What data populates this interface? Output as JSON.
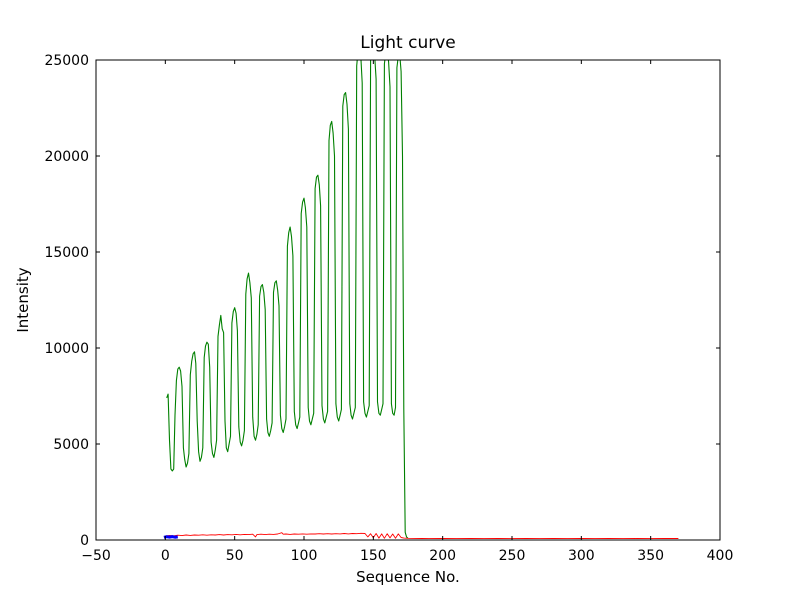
{
  "figure": {
    "background": "#ffffff"
  },
  "chart_data": {
    "type": "line",
    "title": "Light curve",
    "xlabel": "Sequence No.",
    "ylabel": "Intensity",
    "xlim": [
      -50,
      400
    ],
    "ylim": [
      0,
      25000
    ],
    "grid": false,
    "legend_position": "none",
    "axis_color": "#000000",
    "xticks": [
      -50,
      0,
      50,
      100,
      150,
      200,
      250,
      300,
      350,
      400
    ],
    "xtick_labels": [
      "−50",
      "0",
      "50",
      "100",
      "150",
      "200",
      "250",
      "300",
      "350",
      "400"
    ],
    "yticks": [
      0,
      5000,
      10000,
      15000,
      20000,
      25000
    ],
    "ytick_labels": [
      "0",
      "5000",
      "10000",
      "15000",
      "20000",
      "25000"
    ],
    "series": [
      {
        "name": "green-series",
        "color": "#008000",
        "linewidth": 1.1,
        "points": [
          [
            1,
            7400
          ],
          [
            2,
            7600
          ],
          [
            3,
            5200
          ],
          [
            4,
            3700
          ],
          [
            5,
            3600
          ],
          [
            6,
            3700
          ],
          [
            7,
            6500
          ],
          [
            8,
            8300
          ],
          [
            9,
            8900
          ],
          [
            10,
            9000
          ],
          [
            11,
            8800
          ],
          [
            12,
            8000
          ],
          [
            13,
            4800
          ],
          [
            14,
            4200
          ],
          [
            15,
            3800
          ],
          [
            16,
            4000
          ],
          [
            17,
            4500
          ],
          [
            18,
            8600
          ],
          [
            19,
            9300
          ],
          [
            20,
            9700
          ],
          [
            21,
            9800
          ],
          [
            22,
            9200
          ],
          [
            23,
            6200
          ],
          [
            24,
            4600
          ],
          [
            25,
            4100
          ],
          [
            26,
            4300
          ],
          [
            27,
            4800
          ],
          [
            28,
            9500
          ],
          [
            29,
            10100
          ],
          [
            30,
            10300
          ],
          [
            31,
            10200
          ],
          [
            32,
            9000
          ],
          [
            33,
            5100
          ],
          [
            34,
            4500
          ],
          [
            35,
            4300
          ],
          [
            36,
            4700
          ],
          [
            37,
            5200
          ],
          [
            38,
            10600
          ],
          [
            39,
            11200
          ],
          [
            40,
            11700
          ],
          [
            41,
            11000
          ],
          [
            42,
            10800
          ],
          [
            43,
            6200
          ],
          [
            44,
            4800
          ],
          [
            45,
            4600
          ],
          [
            46,
            5000
          ],
          [
            47,
            5400
          ],
          [
            48,
            11300
          ],
          [
            49,
            11900
          ],
          [
            50,
            12100
          ],
          [
            51,
            11800
          ],
          [
            52,
            10900
          ],
          [
            53,
            5900
          ],
          [
            54,
            5100
          ],
          [
            55,
            4900
          ],
          [
            56,
            5200
          ],
          [
            57,
            5700
          ],
          [
            58,
            12800
          ],
          [
            59,
            13600
          ],
          [
            60,
            13900
          ],
          [
            61,
            13400
          ],
          [
            62,
            12600
          ],
          [
            63,
            6400
          ],
          [
            64,
            5400
          ],
          [
            65,
            5200
          ],
          [
            66,
            5500
          ],
          [
            67,
            6000
          ],
          [
            68,
            12700
          ],
          [
            69,
            13200
          ],
          [
            70,
            13300
          ],
          [
            71,
            12900
          ],
          [
            72,
            12000
          ],
          [
            73,
            6300
          ],
          [
            74,
            5600
          ],
          [
            75,
            5400
          ],
          [
            76,
            5700
          ],
          [
            77,
            6100
          ],
          [
            78,
            12900
          ],
          [
            79,
            13400
          ],
          [
            80,
            13500
          ],
          [
            81,
            13000
          ],
          [
            82,
            12200
          ],
          [
            83,
            6500
          ],
          [
            84,
            5800
          ],
          [
            85,
            5600
          ],
          [
            86,
            5900
          ],
          [
            87,
            6300
          ],
          [
            88,
            15300
          ],
          [
            89,
            16000
          ],
          [
            90,
            16300
          ],
          [
            91,
            15800
          ],
          [
            92,
            14800
          ],
          [
            93,
            6700
          ],
          [
            94,
            6000
          ],
          [
            95,
            5800
          ],
          [
            96,
            6100
          ],
          [
            97,
            6400
          ],
          [
            98,
            17000
          ],
          [
            99,
            17600
          ],
          [
            100,
            17800
          ],
          [
            101,
            17300
          ],
          [
            102,
            16300
          ],
          [
            103,
            6900
          ],
          [
            104,
            6200
          ],
          [
            105,
            6000
          ],
          [
            106,
            6300
          ],
          [
            107,
            6600
          ],
          [
            108,
            18300
          ],
          [
            109,
            18900
          ],
          [
            110,
            19000
          ],
          [
            111,
            18500
          ],
          [
            112,
            17400
          ],
          [
            113,
            7000
          ],
          [
            114,
            6300
          ],
          [
            115,
            6100
          ],
          [
            116,
            6400
          ],
          [
            117,
            6700
          ],
          [
            118,
            20800
          ],
          [
            119,
            21600
          ],
          [
            120,
            21800
          ],
          [
            121,
            21200
          ],
          [
            122,
            20000
          ],
          [
            123,
            7100
          ],
          [
            124,
            6400
          ],
          [
            125,
            6200
          ],
          [
            126,
            6500
          ],
          [
            127,
            6800
          ],
          [
            128,
            22600
          ],
          [
            129,
            23200
          ],
          [
            130,
            23300
          ],
          [
            131,
            22700
          ],
          [
            132,
            21400
          ],
          [
            133,
            7100
          ],
          [
            134,
            6500
          ],
          [
            135,
            6300
          ],
          [
            136,
            6600
          ],
          [
            137,
            6900
          ],
          [
            138,
            24700
          ],
          [
            139,
            25500
          ],
          [
            140,
            25600
          ],
          [
            141,
            25100
          ],
          [
            142,
            23800
          ],
          [
            143,
            7200
          ],
          [
            144,
            6600
          ],
          [
            145,
            6400
          ],
          [
            146,
            6700
          ],
          [
            147,
            7000
          ],
          [
            148,
            25000
          ],
          [
            149,
            25700
          ],
          [
            150,
            25800
          ],
          [
            151,
            25200
          ],
          [
            152,
            24000
          ],
          [
            153,
            7200
          ],
          [
            154,
            6600
          ],
          [
            155,
            6500
          ],
          [
            156,
            6800
          ],
          [
            157,
            7100
          ],
          [
            158,
            24800
          ],
          [
            159,
            25400
          ],
          [
            160,
            25500
          ],
          [
            161,
            24900
          ],
          [
            162,
            23600
          ],
          [
            163,
            7100
          ],
          [
            164,
            6600
          ],
          [
            165,
            6500
          ],
          [
            166,
            6900
          ],
          [
            167,
            24600
          ],
          [
            168,
            25200
          ],
          [
            169,
            25300
          ],
          [
            170,
            24400
          ],
          [
            171,
            20000
          ],
          [
            172,
            6800
          ],
          [
            173,
            400
          ],
          [
            174,
            150
          ],
          [
            175,
            100
          ]
        ]
      },
      {
        "name": "red-series",
        "color": "#ff0000",
        "linewidth": 0.9,
        "points": [
          [
            0,
            210
          ],
          [
            3,
            240
          ],
          [
            6,
            220
          ],
          [
            9,
            250
          ],
          [
            12,
            230
          ],
          [
            15,
            260
          ],
          [
            18,
            240
          ],
          [
            21,
            260
          ],
          [
            24,
            250
          ],
          [
            27,
            270
          ],
          [
            30,
            250
          ],
          [
            33,
            270
          ],
          [
            36,
            260
          ],
          [
            39,
            280
          ],
          [
            42,
            260
          ],
          [
            45,
            280
          ],
          [
            48,
            270
          ],
          [
            51,
            290
          ],
          [
            54,
            270
          ],
          [
            57,
            290
          ],
          [
            60,
            280
          ],
          [
            63,
            300
          ],
          [
            65,
            160
          ],
          [
            66,
            280
          ],
          [
            69,
            300
          ],
          [
            72,
            280
          ],
          [
            75,
            300
          ],
          [
            78,
            290
          ],
          [
            81,
            310
          ],
          [
            84,
            380
          ],
          [
            85,
            300
          ],
          [
            87,
            310
          ],
          [
            90,
            290
          ],
          [
            93,
            310
          ],
          [
            96,
            300
          ],
          [
            99,
            320
          ],
          [
            102,
            300
          ],
          [
            105,
            320
          ],
          [
            108,
            310
          ],
          [
            111,
            330
          ],
          [
            114,
            310
          ],
          [
            117,
            330
          ],
          [
            120,
            310
          ],
          [
            123,
            330
          ],
          [
            126,
            320
          ],
          [
            129,
            340
          ],
          [
            132,
            320
          ],
          [
            135,
            340
          ],
          [
            138,
            330
          ],
          [
            141,
            350
          ],
          [
            144,
            340
          ],
          [
            146,
            160
          ],
          [
            148,
            330
          ],
          [
            150,
            120
          ],
          [
            152,
            340
          ],
          [
            154,
            100
          ],
          [
            156,
            320
          ],
          [
            158,
            90
          ],
          [
            160,
            330
          ],
          [
            162,
            110
          ],
          [
            164,
            310
          ],
          [
            166,
            90
          ],
          [
            168,
            320
          ],
          [
            170,
            130
          ],
          [
            172,
            100
          ],
          [
            175,
            90
          ],
          [
            180,
            85
          ],
          [
            185,
            80
          ],
          [
            190,
            85
          ],
          [
            200,
            80
          ],
          [
            210,
            85
          ],
          [
            220,
            80
          ],
          [
            230,
            85
          ],
          [
            240,
            80
          ],
          [
            250,
            85
          ],
          [
            260,
            80
          ],
          [
            270,
            85
          ],
          [
            280,
            80
          ],
          [
            290,
            85
          ],
          [
            300,
            80
          ],
          [
            310,
            85
          ],
          [
            320,
            80
          ],
          [
            330,
            85
          ],
          [
            340,
            80
          ],
          [
            350,
            85
          ],
          [
            360,
            80
          ],
          [
            370,
            80
          ]
        ]
      },
      {
        "name": "blue-series",
        "color": "#0000ff",
        "linewidth": 3,
        "points": [
          [
            -1,
            140
          ],
          [
            1,
            170
          ],
          [
            3,
            150
          ],
          [
            5,
            175
          ],
          [
            7,
            145
          ],
          [
            9,
            160
          ]
        ]
      }
    ]
  }
}
